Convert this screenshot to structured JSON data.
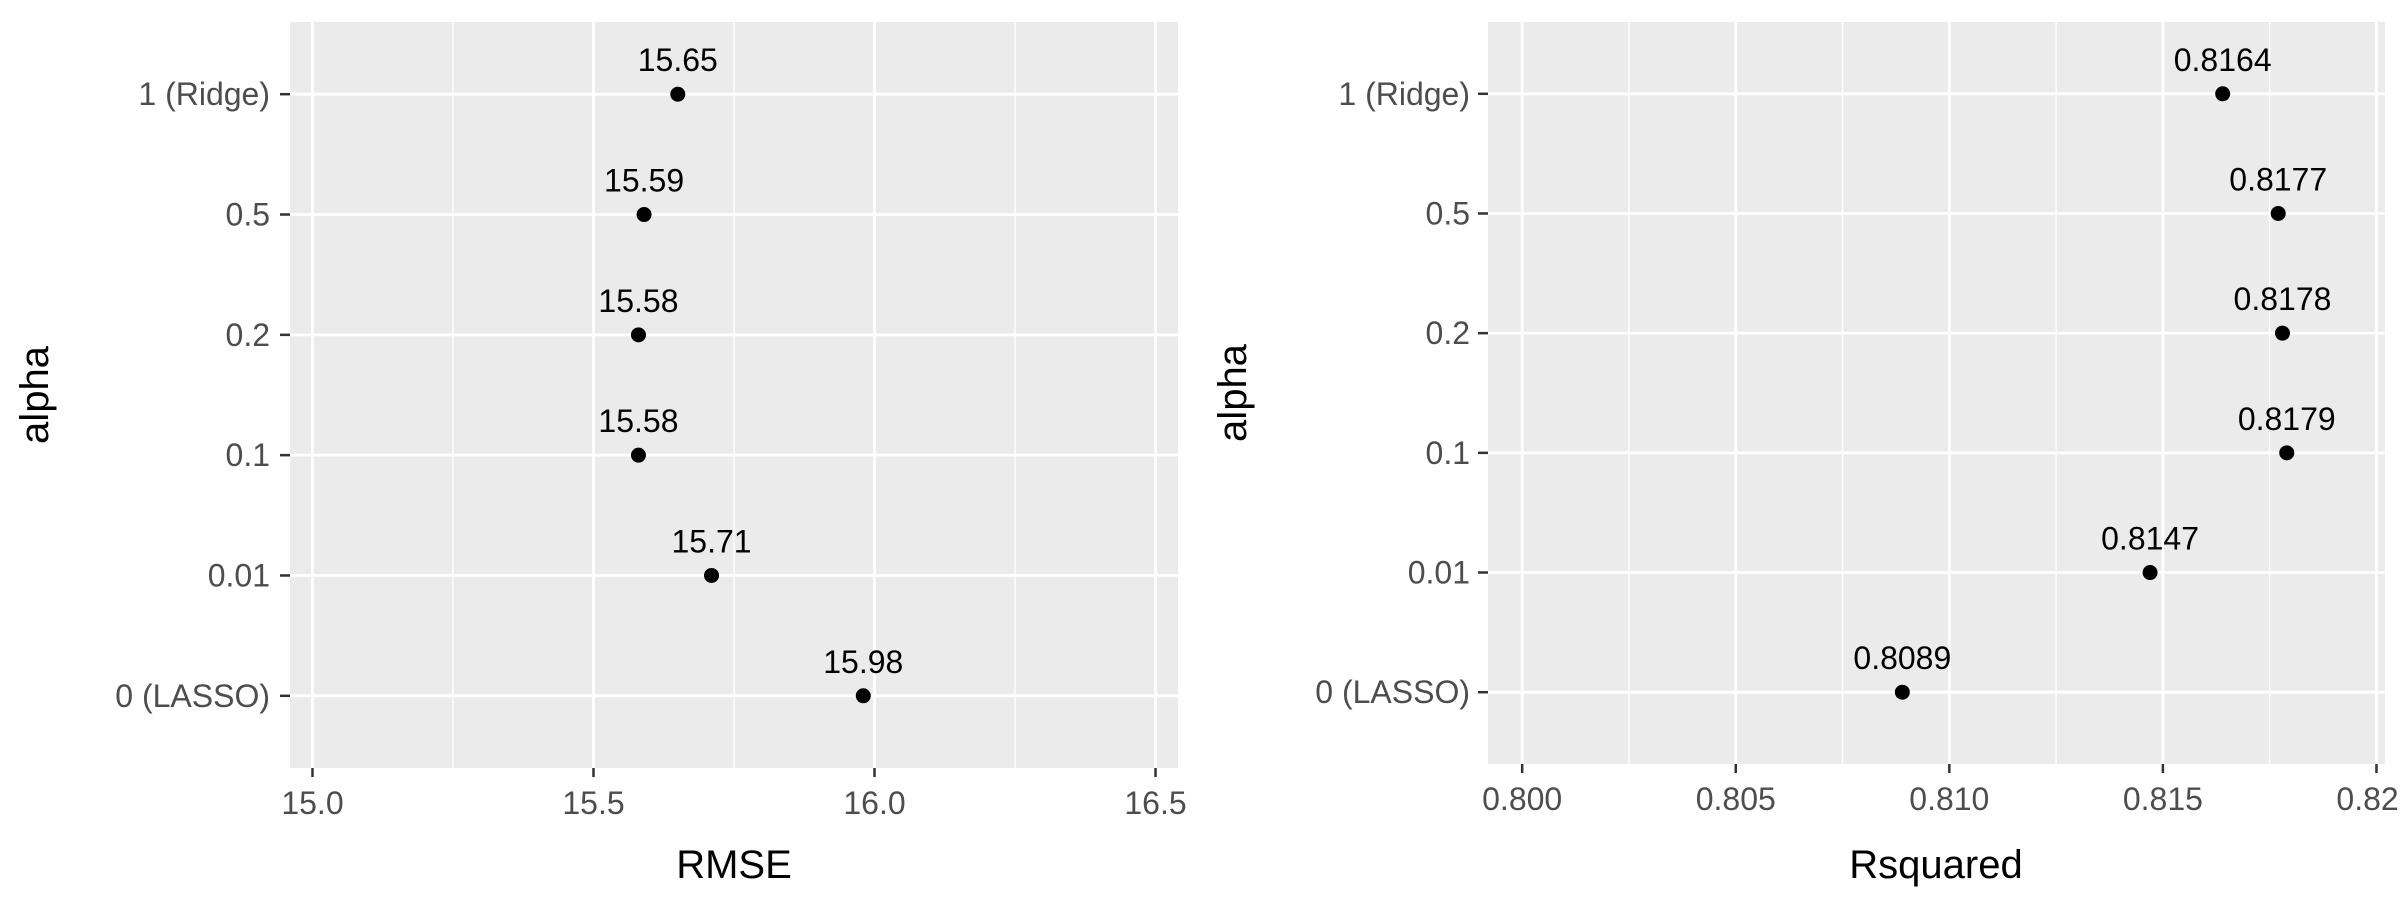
{
  "chart_data": [
    {
      "type": "scatter",
      "title": "",
      "xlabel": "RMSE",
      "ylabel": "alpha",
      "categories": [
        "0 (LASSO)",
        "0.01",
        "0.1",
        "0.2",
        "0.5",
        "1 (Ridge)"
      ],
      "values": [
        15.98,
        15.71,
        15.58,
        15.58,
        15.59,
        15.65
      ],
      "data_labels": [
        "15.98",
        "15.71",
        "15.58",
        "15.58",
        "15.59",
        "15.65"
      ],
      "xlim": [
        14.96,
        16.54
      ],
      "xticks": [
        15.0,
        15.5,
        16.0,
        16.5
      ],
      "xtick_labels": [
        "15.0",
        "15.5",
        "16.0",
        "16.5"
      ],
      "grid": true,
      "background": "#ebebeb",
      "point_color": "#000000"
    },
    {
      "type": "scatter",
      "title": "",
      "xlabel": "Rsquared",
      "ylabel": "alpha",
      "categories": [
        "0 (LASSO)",
        "0.01",
        "0.1",
        "0.2",
        "0.5",
        "1 (Ridge)"
      ],
      "values": [
        0.8089,
        0.8147,
        0.8179,
        0.8178,
        0.8177,
        0.8164
      ],
      "data_labels": [
        "0.8089",
        "0.8147",
        "0.8179",
        "0.8178",
        "0.8177",
        "0.8164"
      ],
      "xlim": [
        0.7992,
        0.8202
      ],
      "xticks": [
        0.8,
        0.805,
        0.81,
        0.815,
        0.82
      ],
      "xtick_labels": [
        "0.800",
        "0.805",
        "0.810",
        "0.815",
        "0.820"
      ],
      "grid": true,
      "background": "#ebebeb",
      "point_color": "#000000"
    }
  ]
}
